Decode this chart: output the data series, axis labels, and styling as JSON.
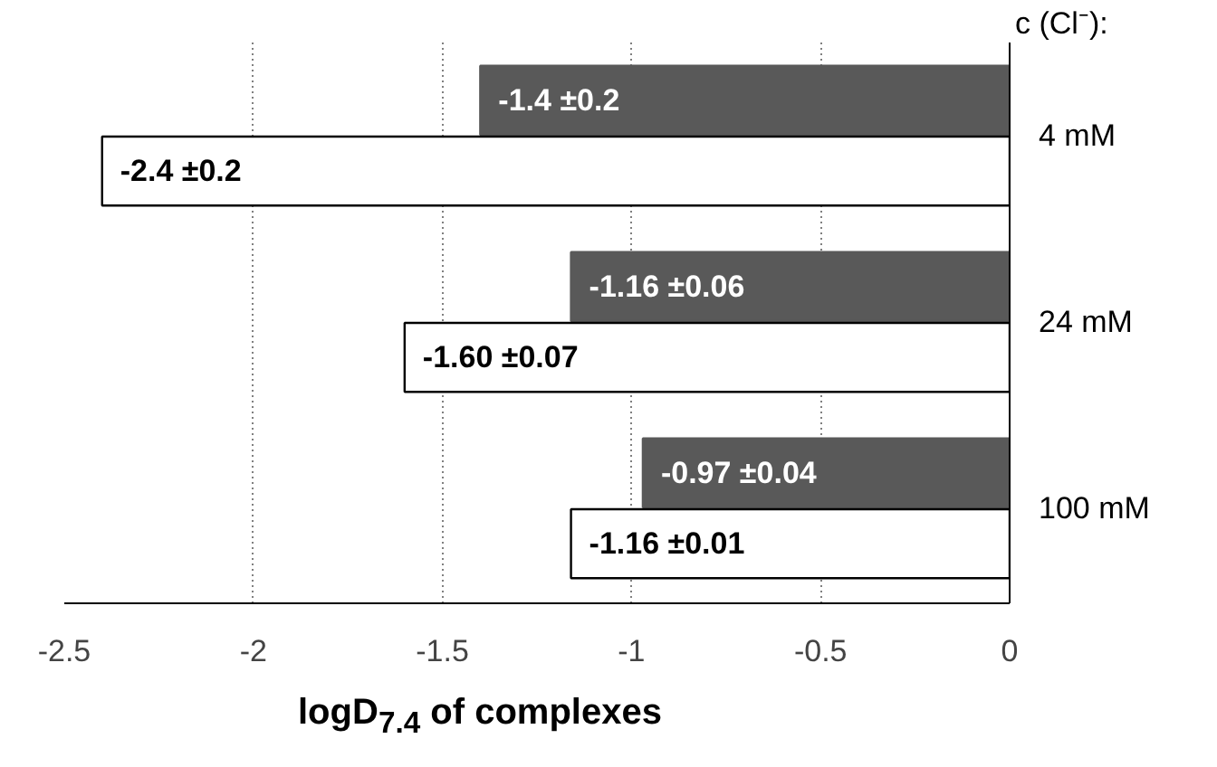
{
  "chart_data": {
    "type": "bar",
    "orientation": "horizontal",
    "ylabel": "c (Cl⁻):",
    "xlabel": "logD$_{7.4}$ of complexes",
    "categories": [
      "4 mM",
      "24 mM",
      "100 mM"
    ],
    "series": [
      {
        "color": "#595959",
        "values": [
          -1.4,
          -1.16,
          -0.97
        ],
        "value_labels": [
          "-1.4 ±0.2",
          "-1.16 ±0.06",
          "-0.97 ±0.04"
        ]
      },
      {
        "color": "#ffffff",
        "values": [
          -2.4,
          -1.6,
          -1.16
        ],
        "value_labels": [
          "-2.4 ±0.2",
          "-1.60 ±0.07",
          "-1.16 ±0.01"
        ]
      }
    ],
    "xlim": [
      -2.5,
      0
    ],
    "xticks": [
      -2.5,
      -2,
      -1.5,
      -1,
      -0.5,
      0
    ],
    "grid": "x"
  }
}
